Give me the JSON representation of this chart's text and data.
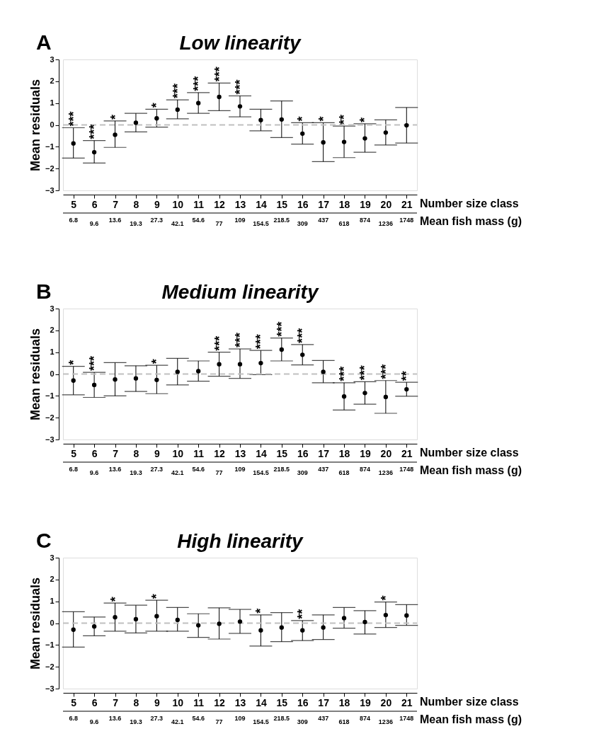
{
  "chart_data": [
    {
      "type": "scatter",
      "title": "Low linearity",
      "xlabel": "Number size class",
      "ylabel": "Mean residuals",
      "x2label": "Mean fish mass (g)",
      "marker": "circle",
      "color": "#000000",
      "grid": false,
      "categories": [
        "5",
        "6",
        "7",
        "8",
        "9",
        "10",
        "11",
        "12",
        "13",
        "14",
        "15",
        "16",
        "17",
        "18",
        "19",
        "20",
        "21"
      ],
      "values": [
        -0.85,
        -1.25,
        -0.45,
        0.1,
        0.3,
        0.7,
        1.0,
        1.28,
        0.85,
        0.22,
        0.25,
        -0.4,
        -0.8,
        -0.78,
        -0.62,
        -0.35,
        -0.02
      ],
      "errors": [
        [
          -1.52,
          -0.13
        ],
        [
          -1.75,
          -0.72
        ],
        [
          -1.03,
          0.18
        ],
        [
          -0.32,
          0.53
        ],
        [
          -0.1,
          0.72
        ],
        [
          0.28,
          1.15
        ],
        [
          0.53,
          1.48
        ],
        [
          0.65,
          1.92
        ],
        [
          0.37,
          1.33
        ],
        [
          -0.27,
          0.72
        ],
        [
          -0.58,
          1.1
        ],
        [
          -0.88,
          0.1
        ],
        [
          -1.68,
          0.1
        ],
        [
          -1.5,
          -0.05
        ],
        [
          -1.25,
          0.05
        ],
        [
          -0.92,
          0.23
        ],
        [
          -0.83,
          0.8
        ]
      ],
      "ylim": [
        -3,
        3
      ],
      "yticks": [
        -3,
        -2,
        -1,
        0,
        1,
        2,
        3
      ],
      "ref_lines": [
        {
          "axis": "y",
          "value": 0,
          "color": "#c0c0c0",
          "line_style": "dashed"
        }
      ],
      "annotations": [
        "A",
        "6.8",
        "9.6",
        "13.6",
        "19.3",
        "27.3",
        "42.1",
        "54.6",
        "77",
        "109",
        "154.5",
        "218.5",
        "309",
        "437",
        "618",
        "874",
        "1236",
        "1748",
        {
          "text": "***",
          "x": "5",
          "y": -0.13
        },
        {
          "text": "***",
          "x": "6",
          "y": -0.72
        },
        {
          "text": "*",
          "x": "7",
          "y": 0.18
        },
        {
          "text": "*",
          "x": "9",
          "y": 0.72
        },
        {
          "text": "***",
          "x": "10",
          "y": 1.15
        },
        {
          "text": "***",
          "x": "11",
          "y": 1.48
        },
        {
          "text": "***",
          "x": "12",
          "y": 1.92
        },
        {
          "text": "***",
          "x": "13",
          "y": 1.33
        },
        {
          "text": "*",
          "x": "16",
          "y": 0.1
        },
        {
          "text": "*",
          "x": "17",
          "y": 0.1
        },
        {
          "text": "**",
          "x": "18",
          "y": -0.05
        },
        {
          "text": "*",
          "x": "19",
          "y": 0.05
        }
      ]
    },
    {
      "type": "scatter",
      "title": "Medium linearity",
      "xlabel": "Number size class",
      "ylabel": "Mean residuals",
      "x2label": "Mean fish mass (g)",
      "marker": "circle",
      "color": "#000000",
      "grid": false,
      "categories": [
        "5",
        "6",
        "7",
        "8",
        "9",
        "10",
        "11",
        "12",
        "13",
        "14",
        "15",
        "16",
        "17",
        "18",
        "19",
        "20",
        "21"
      ],
      "values": [
        -0.3,
        -0.5,
        -0.25,
        -0.2,
        -0.27,
        0.1,
        0.13,
        0.45,
        0.45,
        0.5,
        1.12,
        0.88,
        0.1,
        -1.03,
        -0.87,
        -1.05,
        -0.7
      ],
      "errors": [
        [
          -0.95,
          0.35
        ],
        [
          -1.07,
          0.08
        ],
        [
          -1.0,
          0.52
        ],
        [
          -0.8,
          0.38
        ],
        [
          -0.9,
          0.4
        ],
        [
          -0.5,
          0.72
        ],
        [
          -0.33,
          0.6
        ],
        [
          -0.1,
          1.0
        ],
        [
          -0.2,
          1.15
        ],
        [
          -0.03,
          1.08
        ],
        [
          0.6,
          1.65
        ],
        [
          0.42,
          1.35
        ],
        [
          -0.4,
          0.62
        ],
        [
          -1.65,
          -0.4
        ],
        [
          -1.38,
          -0.35
        ],
        [
          -1.8,
          -0.3
        ],
        [
          -1.02,
          -0.38
        ]
      ],
      "ylim": [
        -3,
        3
      ],
      "yticks": [
        -3,
        -2,
        -1,
        0,
        1,
        2,
        3
      ],
      "ref_lines": [
        {
          "axis": "y",
          "value": 0,
          "color": "#c0c0c0",
          "line_style": "dashed"
        }
      ],
      "annotations": [
        "B",
        "6.8",
        "9.6",
        "13.6",
        "19.3",
        "27.3",
        "42.1",
        "54.6",
        "77",
        "109",
        "154.5",
        "218.5",
        "309",
        "437",
        "618",
        "874",
        "1236",
        "1748",
        {
          "text": "*",
          "x": "5",
          "y": 0.35
        },
        {
          "text": "***",
          "x": "6",
          "y": 0.08
        },
        {
          "text": "*",
          "x": "9",
          "y": 0.4
        },
        {
          "text": "***",
          "x": "12",
          "y": 1.0
        },
        {
          "text": "***",
          "x": "13",
          "y": 1.15
        },
        {
          "text": "***",
          "x": "14",
          "y": 1.08
        },
        {
          "text": "***",
          "x": "15",
          "y": 1.65
        },
        {
          "text": "***",
          "x": "16",
          "y": 1.35
        },
        {
          "text": "***",
          "x": "18",
          "y": -0.4
        },
        {
          "text": "***",
          "x": "19",
          "y": -0.35
        },
        {
          "text": "***",
          "x": "20",
          "y": -0.3
        },
        {
          "text": "**",
          "x": "21",
          "y": -0.38
        }
      ]
    },
    {
      "type": "scatter",
      "title": "High linearity",
      "xlabel": "Number size class",
      "ylabel": "Mean residuals",
      "x2label": "Mean fish mass (g)",
      "marker": "circle",
      "color": "#000000",
      "grid": false,
      "categories": [
        "5",
        "6",
        "7",
        "8",
        "9",
        "10",
        "11",
        "12",
        "13",
        "14",
        "15",
        "16",
        "17",
        "18",
        "19",
        "20",
        "21"
      ],
      "values": [
        -0.3,
        -0.15,
        0.27,
        0.18,
        0.32,
        0.15,
        -0.1,
        -0.03,
        0.07,
        -0.33,
        -0.2,
        -0.33,
        -0.2,
        0.23,
        0.05,
        0.37,
        0.35
      ],
      "errors": [
        [
          -1.1,
          0.52
        ],
        [
          -0.58,
          0.28
        ],
        [
          -0.37,
          0.92
        ],
        [
          -0.45,
          0.82
        ],
        [
          -0.37,
          1.05
        ],
        [
          -0.37,
          0.72
        ],
        [
          -0.65,
          0.43
        ],
        [
          -0.73,
          0.7
        ],
        [
          -0.47,
          0.63
        ],
        [
          -1.05,
          0.38
        ],
        [
          -0.85,
          0.48
        ],
        [
          -0.8,
          0.12
        ],
        [
          -0.75,
          0.38
        ],
        [
          -0.23,
          0.72
        ],
        [
          -0.5,
          0.57
        ],
        [
          -0.2,
          0.97
        ],
        [
          -0.1,
          0.85
        ]
      ],
      "ylim": [
        -3,
        3
      ],
      "yticks": [
        -3,
        -2,
        -1,
        0,
        1,
        2,
        3
      ],
      "ref_lines": [
        {
          "axis": "y",
          "value": 0,
          "color": "#c0c0c0",
          "line_style": "dashed"
        }
      ],
      "annotations": [
        "C",
        "6.8",
        "9.6",
        "13.6",
        "19.3",
        "27.3",
        "42.1",
        "54.6",
        "77",
        "109",
        "154.5",
        "218.5",
        "309",
        "437",
        "618",
        "874",
        "1236",
        "1748",
        {
          "text": "*",
          "x": "7",
          "y": 0.92
        },
        {
          "text": "*",
          "x": "9",
          "y": 1.05
        },
        {
          "text": "*",
          "x": "14",
          "y": 0.38
        },
        {
          "text": "**",
          "x": "16",
          "y": 0.12
        },
        {
          "text": "*",
          "x": "20",
          "y": 0.97
        }
      ]
    }
  ]
}
